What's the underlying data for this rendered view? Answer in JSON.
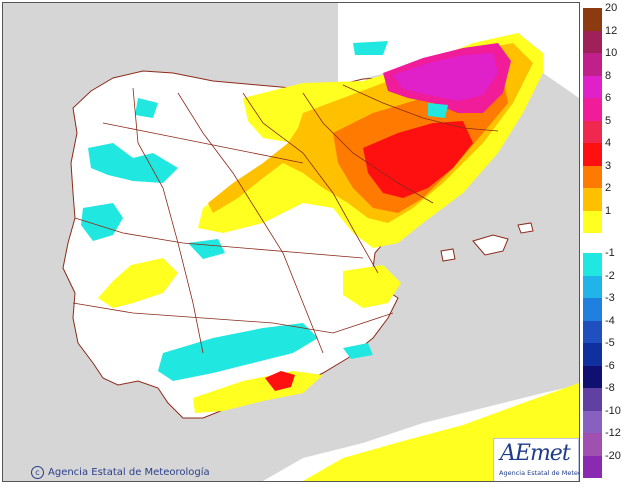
{
  "map": {
    "credit": "Agencia Estatal de Meteorología",
    "logo_text": "AEmet",
    "logo_subtext": "Agencia Estatal de Meteorología",
    "background_sea_color": "#d6d6d6",
    "land_color": "#ffffff",
    "border_color": "#8b2a1a"
  },
  "legend": {
    "positive": [
      {
        "label": "20",
        "color": "#8c3a10"
      },
      {
        "label": "12",
        "color": "#a0205a"
      },
      {
        "label": "10",
        "color": "#c0208a"
      },
      {
        "label": "8",
        "color": "#e020c8"
      },
      {
        "label": "6",
        "color": "#f01c9a"
      },
      {
        "label": "5",
        "color": "#f02850"
      },
      {
        "label": "4",
        "color": "#ff1010"
      },
      {
        "label": "3",
        "color": "#ff7a00"
      },
      {
        "label": "2",
        "color": "#ffc000"
      },
      {
        "label": "1",
        "color": "#ffff20"
      }
    ],
    "negative": [
      {
        "label": "-1",
        "color": "#20e8e0"
      },
      {
        "label": "-2",
        "color": "#20b4e8"
      },
      {
        "label": "-3",
        "color": "#2080e0"
      },
      {
        "label": "-4",
        "color": "#2050c0"
      },
      {
        "label": "-5",
        "color": "#1030a0"
      },
      {
        "label": "-6",
        "color": "#101070"
      },
      {
        "label": "-8",
        "color": "#6040a0"
      },
      {
        "label": "-10",
        "color": "#8860c0"
      },
      {
        "label": "-12",
        "color": "#a050b0"
      },
      {
        "label": "-20",
        "color": "#8a2ab0"
      }
    ]
  }
}
